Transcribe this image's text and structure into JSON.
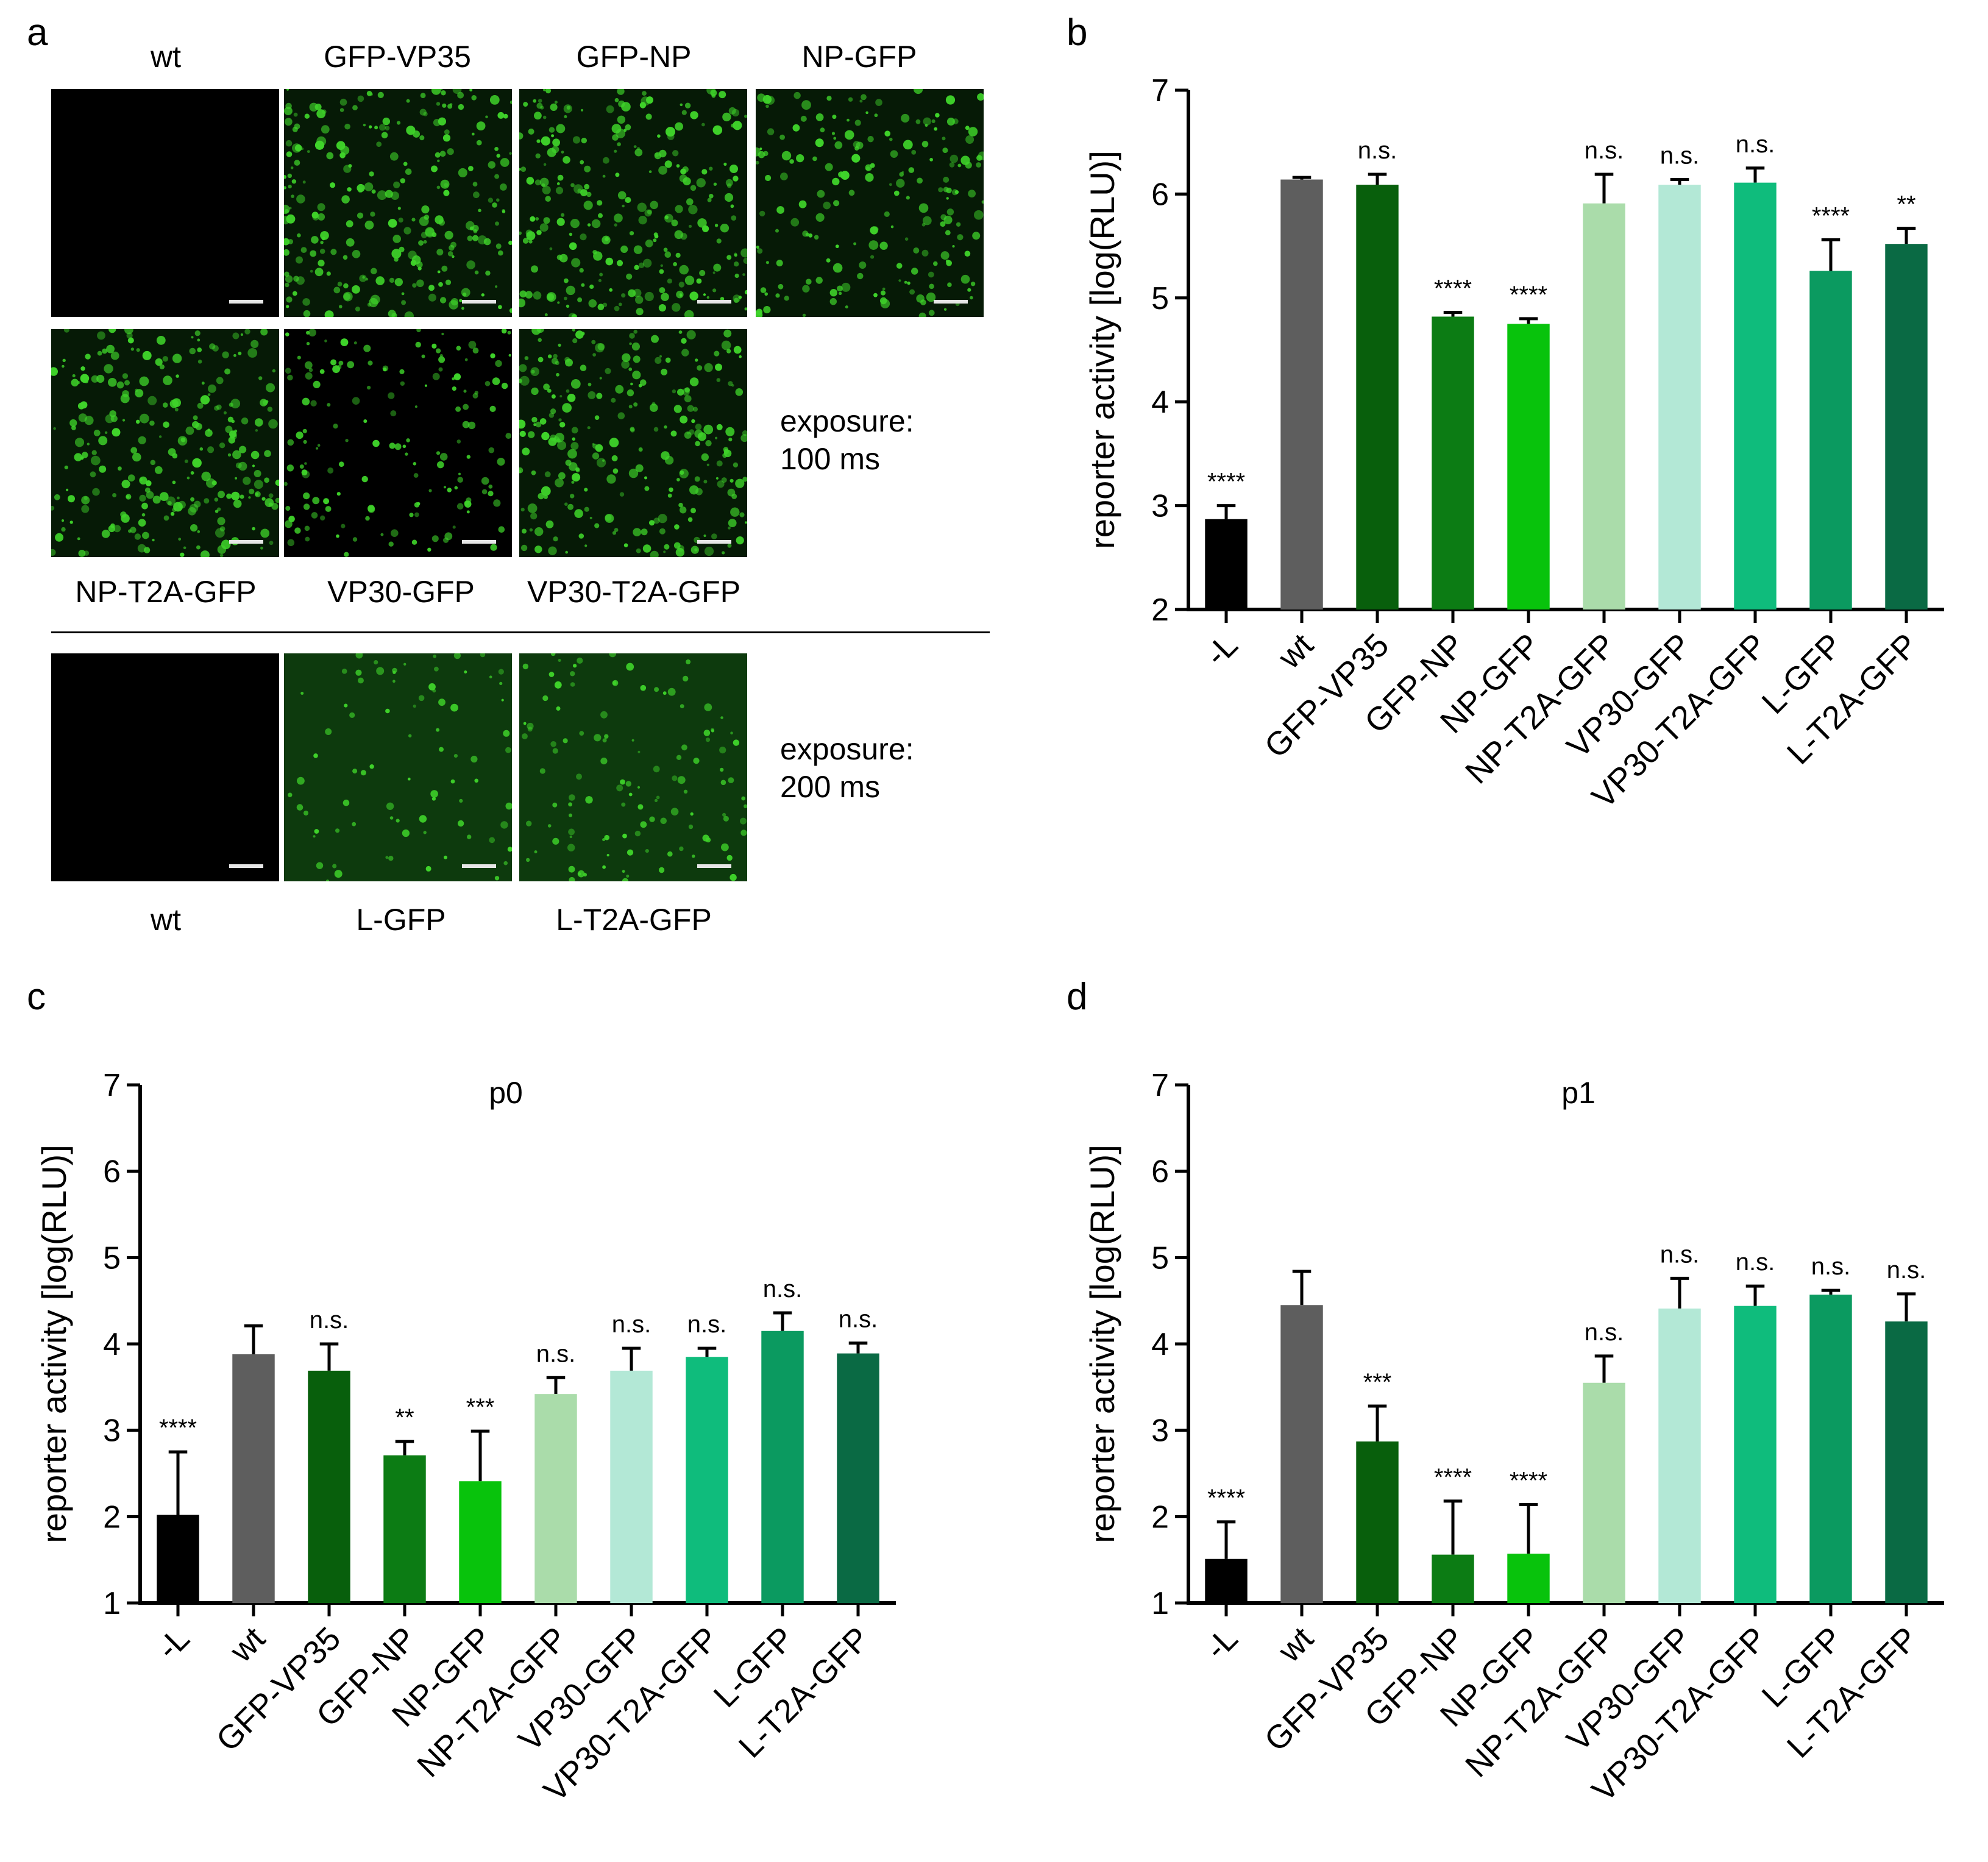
{
  "panel_a": {
    "letter": "a",
    "row1_labels": [
      "wt",
      "GFP-VP35",
      "GFP-NP",
      "NP-GFP"
    ],
    "row2_labels": [
      "NP-T2A-GFP",
      "VP30-GFP",
      "VP30-T2A-GFP"
    ],
    "row3_labels": [
      "wt",
      "L-GFP",
      "L-T2A-GFP"
    ],
    "exposure_1_line1": "exposure:",
    "exposure_1_line2": "100 ms",
    "exposure_2_line1": "exposure:",
    "exposure_2_line2": "200 ms",
    "image_intensity": {
      "row1": [
        0,
        1.0,
        1.0,
        0.75
      ],
      "row2": [
        1.0,
        0.6,
        1.0
      ],
      "row3": [
        0,
        0.3,
        0.45
      ]
    },
    "colors": {
      "cell": "#3fd42a",
      "background": "#000000"
    }
  },
  "chart_data": [
    {
      "type": "bar",
      "panel": "b",
      "title": "",
      "xlabel": "",
      "ylabel": "reporter activity [log(RLU)]",
      "ylim": [
        2,
        7
      ],
      "yticks": [
        2,
        3,
        4,
        5,
        6,
        7
      ],
      "categories": [
        "-L",
        "wt",
        "GFP-VP35",
        "GFP-NP",
        "NP-GFP",
        "NP-T2A-GFP",
        "VP30-GFP",
        "VP30-T2A-GFP",
        "L-GFP",
        "L-T2A-GFP"
      ],
      "values": [
        2.87,
        6.14,
        6.09,
        4.82,
        4.75,
        5.91,
        6.09,
        6.11,
        5.26,
        5.52
      ],
      "errors": [
        0.13,
        0.02,
        0.1,
        0.04,
        0.05,
        0.28,
        0.05,
        0.14,
        0.3,
        0.15
      ],
      "significance": [
        "****",
        "",
        "n.s.",
        "****",
        "****",
        "n.s.",
        "n.s.",
        "n.s.",
        "****",
        "**"
      ],
      "colors": [
        "#000000",
        "#5e5e5e",
        "#085f0c",
        "#0c7c14",
        "#08c30c",
        "#aadcaa",
        "#b3e8d6",
        "#0fbc7c",
        "#0b9a60",
        "#0a6a44"
      ]
    },
    {
      "type": "bar",
      "panel": "c",
      "title": "p0",
      "xlabel": "",
      "ylabel": "reporter activity [log(RLU)]",
      "ylim": [
        1,
        7
      ],
      "yticks": [
        1,
        2,
        3,
        4,
        5,
        6,
        7
      ],
      "categories": [
        "-L",
        "wt",
        "GFP-VP35",
        "GFP-NP",
        "NP-GFP",
        "NP-T2A-GFP",
        "VP30-GFP",
        "VP30-T2A-GFP",
        "L-GFP",
        "L-T2A-GFP"
      ],
      "values": [
        2.02,
        3.88,
        3.69,
        2.71,
        2.41,
        3.42,
        3.69,
        3.85,
        4.15,
        3.89
      ],
      "errors": [
        0.73,
        0.33,
        0.31,
        0.16,
        0.58,
        0.19,
        0.26,
        0.1,
        0.21,
        0.12
      ],
      "significance": [
        "****",
        "",
        "n.s.",
        "**",
        "***",
        "n.s.",
        "n.s.",
        "n.s.",
        "n.s.",
        "n.s."
      ],
      "colors": [
        "#000000",
        "#5e5e5e",
        "#085f0c",
        "#0c7c14",
        "#08c30c",
        "#aadcaa",
        "#b3e8d6",
        "#0fbc7c",
        "#0b9a60",
        "#0a6a44"
      ]
    },
    {
      "type": "bar",
      "panel": "d",
      "title": "p1",
      "xlabel": "",
      "ylabel": "reporter activity [log(RLU)]",
      "ylim": [
        1,
        7
      ],
      "yticks": [
        1,
        2,
        3,
        4,
        5,
        6,
        7
      ],
      "categories": [
        "-L",
        "wt",
        "GFP-VP35",
        "GFP-NP",
        "NP-GFP",
        "NP-T2A-GFP",
        "VP30-GFP",
        "VP30-T2A-GFP",
        "L-GFP",
        "L-T2A-GFP"
      ],
      "values": [
        1.51,
        4.45,
        2.87,
        1.56,
        1.57,
        3.55,
        4.41,
        4.44,
        4.57,
        4.26
      ],
      "errors": [
        0.43,
        0.39,
        0.41,
        0.62,
        0.57,
        0.31,
        0.35,
        0.23,
        0.05,
        0.32
      ],
      "significance": [
        "****",
        "",
        "***",
        "****",
        "****",
        "n.s.",
        "n.s.",
        "n.s.",
        "n.s.",
        "n.s."
      ],
      "colors": [
        "#000000",
        "#5e5e5e",
        "#085f0c",
        "#0c7c14",
        "#08c30c",
        "#aadcaa",
        "#b3e8d6",
        "#0fbc7c",
        "#0b9a60",
        "#0a6a44"
      ]
    }
  ]
}
